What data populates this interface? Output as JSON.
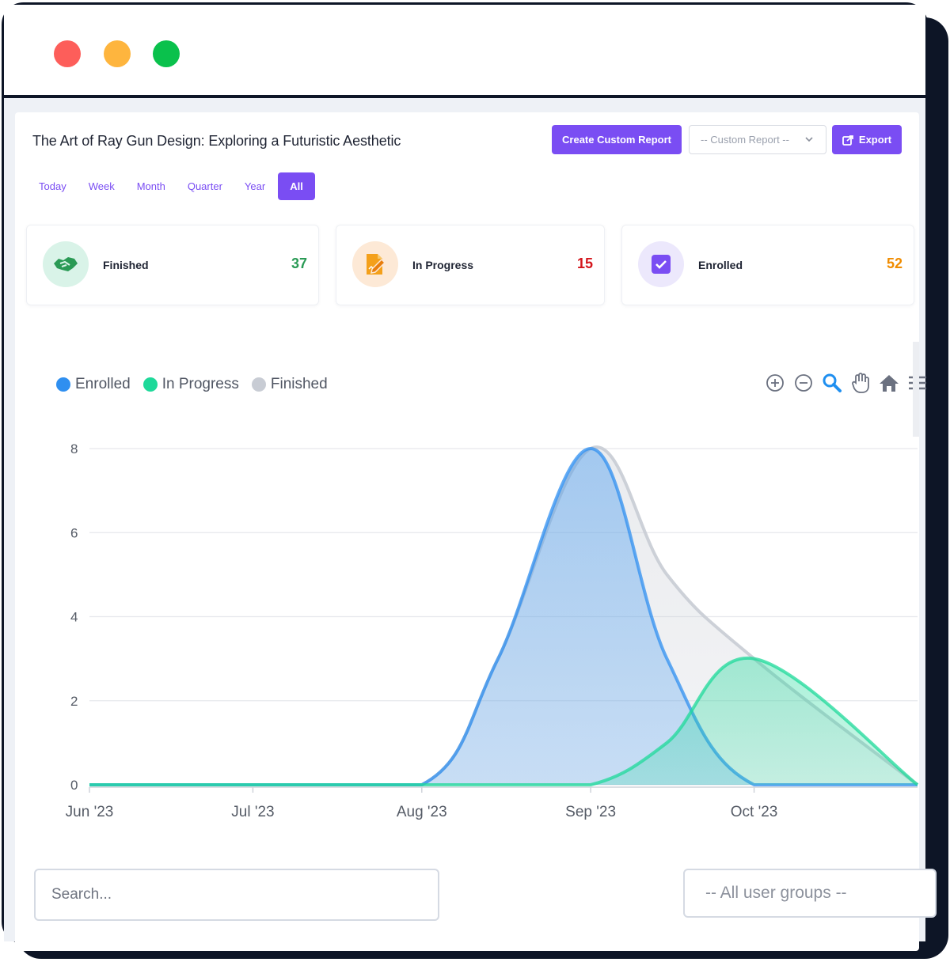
{
  "window": {
    "controls": [
      "close",
      "minimize",
      "maximize"
    ],
    "colors": {
      "close": "#fd5e5a",
      "minimize": "#feb53e",
      "maximize": "#0ac14c",
      "frame": "#0d1526"
    }
  },
  "header": {
    "title": "The Art of Ray Gun Design: Exploring a Futuristic Aesthetic",
    "create_label": "Create Custom Report",
    "custom_report_placeholder": "-- Custom Report --",
    "export_label": "Export"
  },
  "tabs": [
    {
      "label": "Today",
      "active": false
    },
    {
      "label": "Week",
      "active": false
    },
    {
      "label": "Month",
      "active": false
    },
    {
      "label": "Quarter",
      "active": false
    },
    {
      "label": "Year",
      "active": false
    },
    {
      "label": "All",
      "active": true
    }
  ],
  "stats": [
    {
      "label": "Finished",
      "value": "37",
      "color": "#2a9a55",
      "icon": "handshake-icon",
      "icon_bg": "#d9f3e8"
    },
    {
      "label": "In Progress",
      "value": "15",
      "color": "#d4161c",
      "icon": "edit-document-icon",
      "icon_bg": "#fde9d6"
    },
    {
      "label": "Enrolled",
      "value": "52",
      "color": "#f08c00",
      "icon": "checkbox-icon",
      "icon_bg": "#ece8fc"
    }
  ],
  "chart_data": {
    "type": "area",
    "x": [
      "2023-06-01",
      "2023-07-01",
      "2023-08-01",
      "2023-08-15",
      "2023-09-01",
      "2023-09-15",
      "2023-10-01",
      "2023-10-31"
    ],
    "x_tick_labels": [
      "Jun '23",
      "Jul '23",
      "Aug '23",
      "Sep '23",
      "Oct '23"
    ],
    "ylim": [
      0,
      8
    ],
    "y_ticks": [
      0,
      2,
      4,
      6,
      8
    ],
    "grid": true,
    "legend": "top-left",
    "series": [
      {
        "name": "Enrolled",
        "color": "#2f8ff0",
        "values": [
          0,
          0,
          0,
          3,
          8,
          3,
          0,
          0
        ]
      },
      {
        "name": "In Progress",
        "color": "#1ed99a",
        "values": [
          0,
          0,
          0,
          0,
          0,
          1,
          3,
          0
        ]
      },
      {
        "name": "Finished",
        "color": "#c8ccd4",
        "values": [
          0,
          0,
          0,
          3,
          8,
          5,
          3,
          0
        ]
      }
    ]
  },
  "chart_tools": [
    "zoom-in-icon",
    "zoom-out-icon",
    "selection-zoom-icon",
    "pan-icon",
    "reset-home-icon",
    "menu-icon"
  ],
  "filters": {
    "search_placeholder": "Search...",
    "groups_placeholder": "-- All user groups --"
  }
}
